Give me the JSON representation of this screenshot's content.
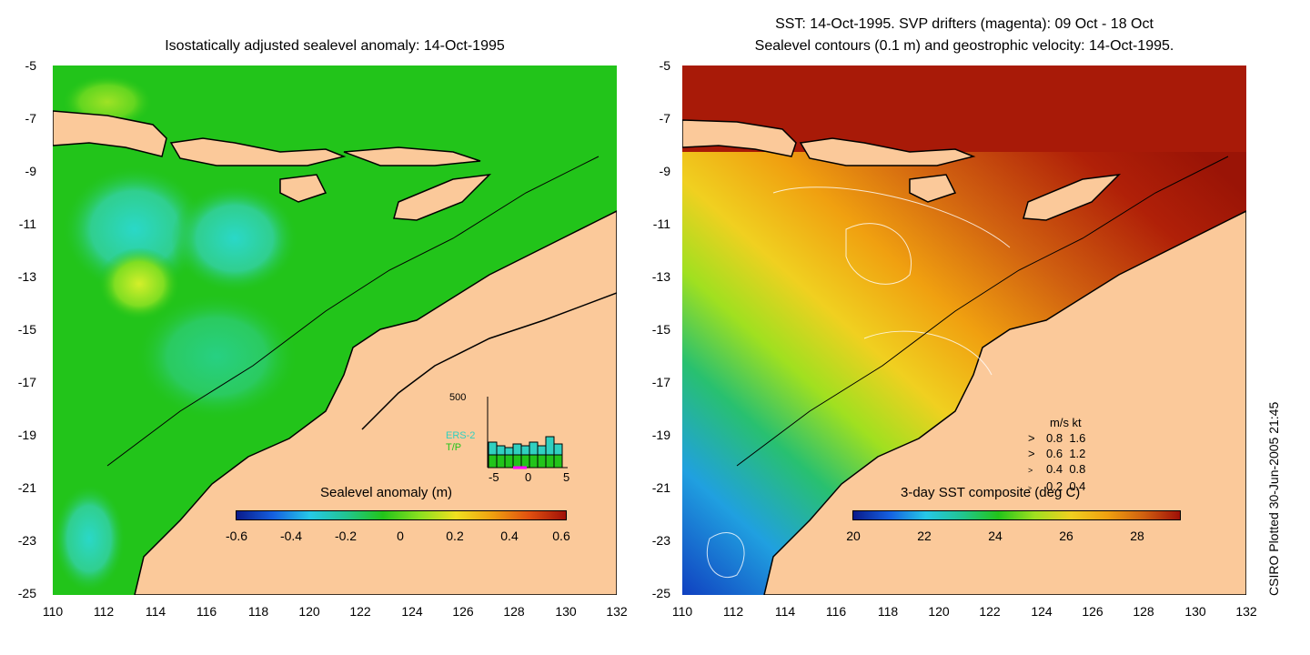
{
  "left_panel": {
    "title": "Isostatically adjusted sealevel anomaly: 14-Oct-1995",
    "colorbar": {
      "label": "Sealevel anomaly (m)",
      "ticks": [
        "-0.6",
        "-0.4",
        "-0.2",
        "0",
        "0.2",
        "0.4",
        "0.6"
      ]
    },
    "inset": {
      "ymax_label": "500",
      "series_labels": [
        "ERS-2",
        "T/P"
      ],
      "x_ticks": [
        "-5",
        "0",
        "5"
      ]
    }
  },
  "right_panel": {
    "title_line1": "SST: 14-Oct-1995. SVP drifters (magenta): 09 Oct - 18 Oct",
    "title_line2": "Sealevel contours (0.1 m) and geostrophic velocity: 14-Oct-1995.",
    "colorbar": {
      "label": "3-day SST composite (deg C)",
      "ticks": [
        "20",
        "22",
        "24",
        "26",
        "28"
      ]
    },
    "velocity_legend": {
      "header": "m/s  kt",
      "rows": [
        {
          "ms": "0.8",
          "kt": "1.6"
        },
        {
          "ms": "0.6",
          "kt": "1.2"
        },
        {
          "ms": "0.4",
          "kt": "0.8"
        },
        {
          "ms": "0.2",
          "kt": "0.4"
        }
      ]
    }
  },
  "axes": {
    "lat_ticks": [
      "-5",
      "-7",
      "-9",
      "-11",
      "-13",
      "-15",
      "-17",
      "-19",
      "-21",
      "-23",
      "-25"
    ],
    "lon_ticks": [
      "110",
      "112",
      "114",
      "116",
      "118",
      "120",
      "122",
      "124",
      "126",
      "128",
      "130",
      "132"
    ]
  },
  "credit": "CSIRO Plotted 30-Jun-2005 21:45",
  "colors": {
    "land": "#fbc99a",
    "ocean_anomaly": "#22c41a",
    "sst_warm": "#a81a08",
    "sst_mid": "#e0800c",
    "sst_cool": "#1f5ed8"
  }
}
